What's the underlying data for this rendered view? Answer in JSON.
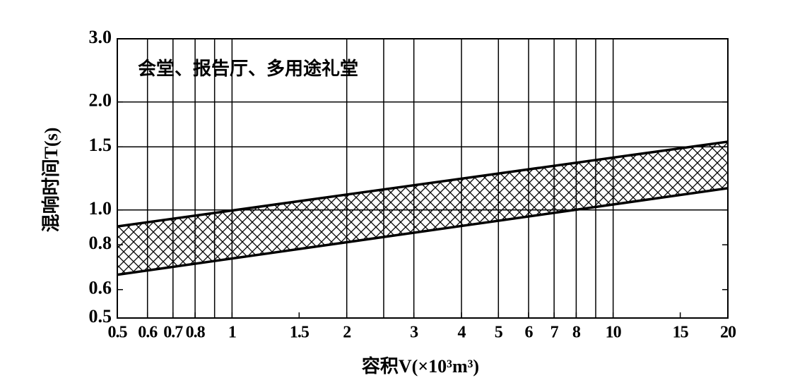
{
  "chart_data": {
    "type": "band",
    "annotation": "会堂、报告厅、多用途礼堂",
    "x_label": "容积V(×10³m³)",
    "y_label": "混响时间T(s)",
    "log_x": true,
    "log_y": true,
    "xlim": [
      0.5,
      20
    ],
    "ylim": [
      0.5,
      3.0
    ],
    "xticks": [
      0.5,
      0.6,
      0.7,
      0.8,
      1,
      1.5,
      2,
      3,
      4,
      5,
      6,
      7,
      8,
      10,
      15,
      20
    ],
    "yticks": [
      0.5,
      0.6,
      0.8,
      {
        "value": 1.0,
        "label": "1.0"
      },
      1.5,
      {
        "value": 2.0,
        "label": "2.0"
      },
      {
        "value": 3.0,
        "label": "3.0"
      }
    ],
    "xgrid": [
      0.6,
      0.7,
      0.8,
      0.9,
      1,
      2,
      2.5,
      3,
      4,
      5,
      6,
      7,
      8,
      9,
      10
    ],
    "ygrid": [
      1.0,
      1.5,
      2.0
    ],
    "band": {
      "x": [
        0.5,
        20
      ],
      "upper": [
        0.9,
        1.55
      ],
      "lower": [
        0.66,
        1.15
      ]
    },
    "color": "#000000"
  }
}
